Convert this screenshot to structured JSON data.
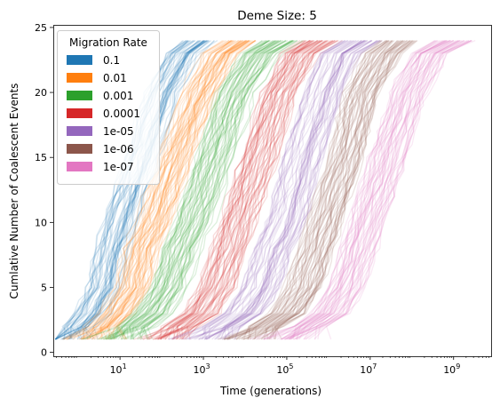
{
  "chart_data": {
    "type": "line",
    "title": "Deme Size: 5",
    "xlabel": "Time (generations)",
    "ylabel": "Cumlative Number of Coalescent Events",
    "x_scale": "log",
    "xlim_log10": [
      -0.6,
      9.9
    ],
    "ylim": [
      -0.3,
      25.2
    ],
    "x_ticks": [
      {
        "exp": 1,
        "base": "10",
        "power": "1"
      },
      {
        "exp": 3,
        "base": "10",
        "power": "3"
      },
      {
        "exp": 5,
        "base": "10",
        "power": "5"
      },
      {
        "exp": 7,
        "base": "10",
        "power": "7"
      },
      {
        "exp": 9,
        "base": "10",
        "power": "9"
      }
    ],
    "y_ticks": [
      {
        "value": 0,
        "label": "0"
      },
      {
        "value": 5,
        "label": "5"
      },
      {
        "value": 10,
        "label": "10"
      },
      {
        "value": 15,
        "label": "15"
      },
      {
        "value": 20,
        "label": "20"
      },
      {
        "value": 25,
        "label": "25"
      }
    ],
    "grid": false,
    "legend": {
      "title": "Migration Rate",
      "placement": "upper-left"
    },
    "series": [
      {
        "name": "0.1",
        "color": "#1f77b4",
        "log10_time_at_events": [
          -0.3,
          0.3,
          0.6,
          0.8,
          1.0,
          1.5,
          2.0,
          2.5,
          2.9
        ],
        "events": [
          1,
          3,
          5,
          8,
          10,
          15,
          20,
          23,
          24
        ]
      },
      {
        "name": "0.01",
        "color": "#ff7f0e",
        "log10_time_at_events": [
          0.3,
          0.9,
          1.3,
          1.5,
          1.8,
          2.3,
          2.9,
          3.4,
          3.9
        ],
        "events": [
          1,
          3,
          5,
          8,
          10,
          15,
          20,
          23,
          24
        ]
      },
      {
        "name": "0.001",
        "color": "#2ca02c",
        "log10_time_at_events": [
          1.0,
          1.8,
          2.2,
          2.5,
          2.8,
          3.3,
          3.8,
          4.4,
          4.9
        ],
        "events": [
          1,
          3,
          5,
          8,
          10,
          15,
          20,
          23,
          24
        ]
      },
      {
        "name": "0.0001",
        "color": "#d62728",
        "log10_time_at_events": [
          2.0,
          2.9,
          3.3,
          3.6,
          3.8,
          4.3,
          4.8,
          5.3,
          5.8
        ],
        "events": [
          1,
          3,
          5,
          8,
          10,
          15,
          20,
          23,
          24
        ]
      },
      {
        "name": "1e-05",
        "color": "#9467bd",
        "log10_time_at_events": [
          3.0,
          4.0,
          4.4,
          4.7,
          5.0,
          5.4,
          5.9,
          6.3,
          6.8
        ],
        "events": [
          1,
          3,
          5,
          8,
          10,
          15,
          20,
          23,
          24
        ]
      },
      {
        "name": "1e-06",
        "color": "#8c564b",
        "log10_time_at_events": [
          4.0,
          5.0,
          5.4,
          5.7,
          5.9,
          6.4,
          6.8,
          7.3,
          7.7
        ],
        "events": [
          1,
          3,
          5,
          8,
          10,
          15,
          20,
          23,
          24
        ]
      },
      {
        "name": "1e-07",
        "color": "#e377c2",
        "log10_time_at_events": [
          5.0,
          6.0,
          6.4,
          6.7,
          6.9,
          7.4,
          7.9,
          8.4,
          9.0
        ],
        "events": [
          1,
          3,
          5,
          8,
          10,
          15,
          20,
          23,
          24
        ]
      }
    ]
  }
}
